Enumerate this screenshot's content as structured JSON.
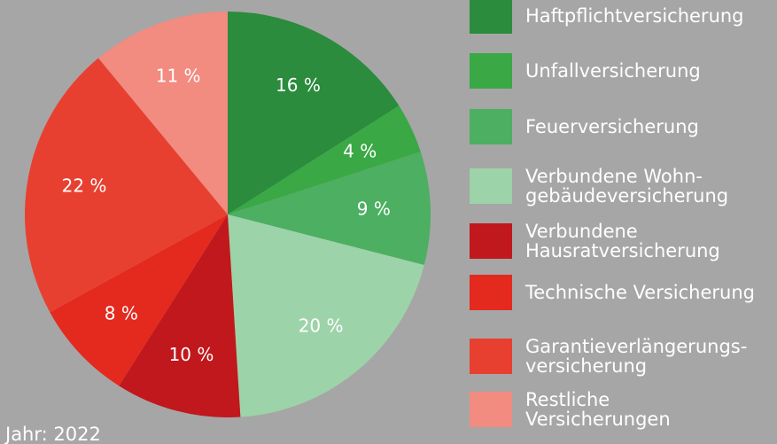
{
  "chart_data": {
    "type": "pie",
    "categories": [
      "Haftpflichtversicherung",
      "Unfallversicherung",
      "Feuerversicherung",
      "Verbundene Wohn-\ngebäudeversicherung",
      "Verbundene\nHausratversicherung",
      "Technische Versicherung",
      "Garantieverlängerungs-\nversicherung",
      "Restliche\nVersicherungen"
    ],
    "values": [
      16,
      4,
      9,
      20,
      10,
      8,
      22,
      11
    ],
    "value_labels": [
      "16 %",
      "4 %",
      "9 %",
      "20 %",
      "10 %",
      "8 %",
      "22 %",
      "11 %"
    ],
    "colors": [
      "#2a8c3c",
      "#3aa845",
      "#4caf61",
      "#9dd3a8",
      "#c0181c",
      "#e4291f",
      "#e84030",
      "#f28b80"
    ],
    "annotation": "Jahr: 2022"
  }
}
